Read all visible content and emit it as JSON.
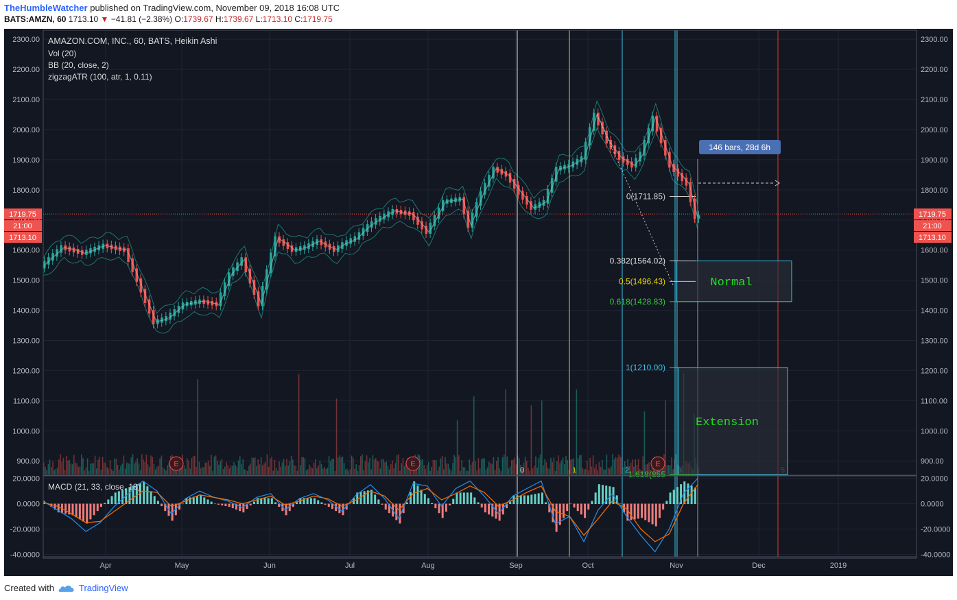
{
  "header": {
    "author": "TheHumbleWatcher",
    "published": "published on TradingView.com, November 09, 2018 16:08 UTC",
    "symbol": "BATS:AMZN, 60",
    "last": "1713.10",
    "change": "−41.81 (−2.38%)",
    "o_label": "O:",
    "o": "1739.67",
    "h_label": "H:",
    "h": "1739.67",
    "l_label": "L:",
    "l": "1713.10",
    "c_label": "C:",
    "c": "1719.75"
  },
  "legend": {
    "title": "AMAZON.COM, INC., 60, BATS, Heikin Ashi",
    "vol": "Vol (20)",
    "bb": "BB (20, close, 2)",
    "zigzag": "zigzagATR (100, atr, 1, 0.11)",
    "macd": "MACD (21, 33, close, 18)"
  },
  "price_tags": {
    "last_close": "1719.75",
    "countdown": "21:00",
    "close": "1713.10"
  },
  "annotations": {
    "bars_label": "146 bars, 28d 6h",
    "normal": "Normal",
    "extension": "Extension",
    "fib": [
      {
        "label": "0(1711.85)",
        "price": 1778
      },
      {
        "label": "0.382(1564.02)",
        "price": 1564
      },
      {
        "label": "0.5(1496.43)",
        "price": 1496
      },
      {
        "label": "0.618(1428.83)",
        "price": 1429
      },
      {
        "label": "1(1210.00)",
        "price": 1210
      },
      {
        "label": "1.618(855",
        "price": 855
      }
    ],
    "cycle_labels": [
      "0",
      "1",
      "2",
      "3",
      "5"
    ],
    "earnings_marker": "E"
  },
  "footer": {
    "created": "Created with",
    "brand": "TradingView"
  },
  "colors": {
    "background": "#131722",
    "up": "#26a69a",
    "down": "#ef5350",
    "fib_0": "#cfcfcf",
    "fib_382": "#e0e0e0",
    "fib_5": "#e6d200",
    "fib_618": "#38c938",
    "fib_1": "#35c6e6",
    "fib_1618": "#38c938",
    "zone_text": "#21e021",
    "macd_line": "#1e88e5",
    "signal_line": "#ef6c00"
  },
  "chart_data": {
    "type": "line",
    "title": "AMAZON.COM, INC., 60, BATS, Heikin Ashi",
    "x_ticks": [
      "Apr",
      "May",
      "Jun",
      "Jul",
      "Aug",
      "Sep",
      "Oct",
      "Nov",
      "Dec",
      "2019"
    ],
    "y_ticks": [
      2300,
      2200,
      2100,
      2000,
      1900,
      1800,
      1700,
      1600,
      1500,
      1400,
      1300,
      1200,
      1100,
      1000,
      900
    ],
    "ylim": [
      855,
      2330
    ],
    "macd_ticks": [
      20,
      0,
      -20,
      -40
    ],
    "macd_ylim": [
      -42,
      22
    ],
    "series": [
      {
        "name": "AMZN",
        "x_idx": [
          0,
          5,
          10,
          15,
          20,
          23,
          27,
          30,
          34,
          38,
          42,
          45,
          48,
          52,
          56,
          60,
          63,
          66,
          70,
          72,
          75,
          78,
          80,
          84,
          88,
          92,
          96,
          100,
          102,
          105,
          108,
          111,
          114,
          117,
          120,
          123,
          126,
          129,
          132,
          135,
          138,
          141,
          143,
          146,
          150,
          154,
          156
        ],
        "y": [
          1545,
          1610,
          1590,
          1615,
          1600,
          1500,
          1360,
          1375,
          1420,
          1430,
          1420,
          1520,
          1570,
          1420,
          1640,
          1600,
          1610,
          1630,
          1600,
          1620,
          1640,
          1680,
          1700,
          1730,
          1720,
          1660,
          1760,
          1770,
          1680,
          1790,
          1870,
          1850,
          1790,
          1740,
          1760,
          1870,
          1880,
          1905,
          2050,
          1960,
          1905,
          1880,
          1920,
          2040,
          1880,
          1820,
          1710
        ]
      }
    ],
    "macd_series": [
      {
        "name": "MACD",
        "values": [
          2,
          -5,
          -12,
          -22,
          -15,
          -2,
          8,
          18,
          10,
          -8,
          4,
          10,
          5,
          2,
          -3,
          5,
          8,
          -5,
          4,
          8,
          3,
          -6,
          7,
          15,
          4,
          -12,
          16,
          14,
          -2,
          12,
          18,
          6,
          -8,
          6,
          12,
          18,
          -16,
          -10,
          -30,
          -5,
          8,
          -10,
          -25,
          -38,
          -20,
          8,
          20
        ]
      },
      {
        "name": "Signal",
        "values": [
          1,
          -2,
          -8,
          -15,
          -14,
          -6,
          2,
          10,
          9,
          -2,
          2,
          7,
          5,
          3,
          0,
          3,
          6,
          -1,
          2,
          6,
          4,
          -2,
          3,
          10,
          6,
          -5,
          8,
          12,
          3,
          8,
          14,
          9,
          -2,
          3,
          9,
          14,
          -6,
          -10,
          -25,
          -12,
          2,
          -4,
          -20,
          -30,
          -24,
          0,
          15
        ]
      }
    ]
  }
}
